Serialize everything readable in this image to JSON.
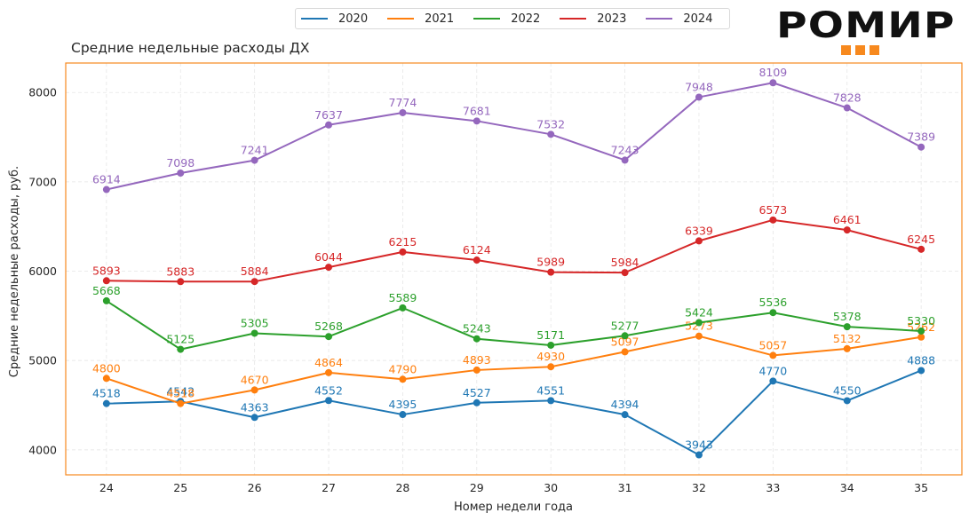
{
  "logo": {
    "text": "РОМИР",
    "accent_color": "#f7891e"
  },
  "chart_data": {
    "type": "line",
    "title": "Средние недельные расходы ДХ",
    "xlabel": "Номер недели года",
    "ylabel": "Средние недельные расходы, руб.",
    "x": [
      24,
      25,
      26,
      27,
      28,
      29,
      30,
      31,
      32,
      33,
      34,
      35
    ],
    "xticks": [
      "24",
      "25",
      "26",
      "27",
      "28",
      "29",
      "30",
      "31",
      "32",
      "33",
      "34",
      "35"
    ],
    "yticks": [
      "4000",
      "5000",
      "6000",
      "7000",
      "8000"
    ],
    "ytick_values": [
      4000,
      5000,
      6000,
      7000,
      8000
    ],
    "ylim": [
      3720,
      8330
    ],
    "xlim": [
      23.45,
      35.55
    ],
    "grid": true,
    "legend_position": "top-center",
    "frame_color": "#f7891e",
    "series": [
      {
        "name": "2020",
        "color": "#1f77b4",
        "values": [
          4518,
          4542,
          4363,
          4552,
          4395,
          4527,
          4551,
          4394,
          3943,
          4770,
          4550,
          4888
        ]
      },
      {
        "name": "2021",
        "color": "#ff7f0e",
        "values": [
          4800,
          4518,
          4670,
          4864,
          4790,
          4893,
          4930,
          5097,
          5273,
          5057,
          5132,
          5262
        ]
      },
      {
        "name": "2022",
        "color": "#2ca02c",
        "values": [
          5668,
          5125,
          5305,
          5268,
          5589,
          5243,
          5171,
          5277,
          5424,
          5536,
          5378,
          5330
        ]
      },
      {
        "name": "2023",
        "color": "#d62728",
        "values": [
          5893,
          5883,
          5884,
          6044,
          6215,
          6124,
          5989,
          5984,
          6339,
          6573,
          6461,
          6245
        ]
      },
      {
        "name": "2024",
        "color": "#9467bd",
        "values": [
          6914,
          7098,
          7241,
          7637,
          7774,
          7681,
          7532,
          7243,
          7948,
          8109,
          7828,
          7389
        ]
      }
    ]
  }
}
